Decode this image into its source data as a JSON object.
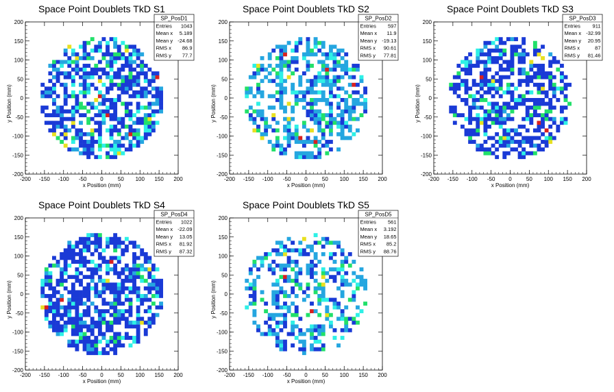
{
  "chart_data": [
    {
      "type": "heatmap",
      "title": "Space Point Doublets TkD S1",
      "xlabel": "x Position (mm)",
      "ylabel": "y Position (mm)",
      "xlim": [
        -200,
        200
      ],
      "ylim": [
        -200,
        200
      ],
      "xticks": [
        "-200",
        "-150",
        "-100",
        "-50",
        "0",
        "50",
        "100",
        "150",
        "200"
      ],
      "yticks": [
        "-200",
        "-150",
        "-100",
        "-50",
        "0",
        "50",
        "100",
        "150",
        "200"
      ],
      "stats": {
        "name": "SP_PosD1",
        "rows": [
          {
            "label": "Entries",
            "value": "1043"
          },
          {
            "label": "Mean x",
            "value": "5.189"
          },
          {
            "label": "Mean y",
            "value": "-24.68"
          },
          {
            "label": "RMS x",
            "value": "86.9"
          },
          {
            "label": "RMS y",
            "value": "77.7"
          }
        ]
      },
      "occupied_radius": 160,
      "bin_width": 10
    },
    {
      "type": "heatmap",
      "title": "Space Point Doublets TkD S2",
      "xlabel": "x Position (mm)",
      "ylabel": "y Position (mm)",
      "xlim": [
        -200,
        200
      ],
      "ylim": [
        -200,
        200
      ],
      "xticks": [
        "-200",
        "-150",
        "-100",
        "-50",
        "0",
        "50",
        "100",
        "150",
        "200"
      ],
      "yticks": [
        "-200",
        "-150",
        "-100",
        "-50",
        "0",
        "50",
        "100",
        "150",
        "200"
      ],
      "stats": {
        "name": "SP_PosD2",
        "rows": [
          {
            "label": "Entries",
            "value": "597"
          },
          {
            "label": "Mean x",
            "value": "11.9"
          },
          {
            "label": "Mean y",
            "value": "-19.13"
          },
          {
            "label": "RMS x",
            "value": "90.61"
          },
          {
            "label": "RMS y",
            "value": "77.81"
          }
        ]
      },
      "occupied_radius": 160,
      "bin_width": 10
    },
    {
      "type": "heatmap",
      "title": "Space Point Doublets TkD S3",
      "xlabel": "x Position (mm)",
      "ylabel": "y Position (mm)",
      "xlim": [
        -200,
        200
      ],
      "ylim": [
        -200,
        200
      ],
      "xticks": [
        "-200",
        "-150",
        "-100",
        "-50",
        "0",
        "50",
        "100",
        "150",
        "200"
      ],
      "yticks": [
        "-200",
        "-150",
        "-100",
        "-50",
        "0",
        "50",
        "100",
        "150",
        "200"
      ],
      "stats": {
        "name": "SP_PosD3",
        "rows": [
          {
            "label": "Entries",
            "value": "911"
          },
          {
            "label": "Mean x",
            "value": "-32.99"
          },
          {
            "label": "Mean y",
            "value": "20.95"
          },
          {
            "label": "RMS x",
            "value": "87"
          },
          {
            "label": "RMS y",
            "value": "81.46"
          }
        ]
      },
      "occupied_radius": 160,
      "bin_width": 10
    },
    {
      "type": "heatmap",
      "title": "Space Point Doublets TkD S4",
      "xlabel": "x Position (mm)",
      "ylabel": "y Position (mm)",
      "xlim": [
        -200,
        200
      ],
      "ylim": [
        -200,
        200
      ],
      "xticks": [
        "-200",
        "-150",
        "-100",
        "-50",
        "0",
        "50",
        "100",
        "150",
        "200"
      ],
      "yticks": [
        "-200",
        "-150",
        "-100",
        "-50",
        "0",
        "50",
        "100",
        "150",
        "200"
      ],
      "stats": {
        "name": "SP_PosD4",
        "rows": [
          {
            "label": "Entries",
            "value": "1022"
          },
          {
            "label": "Mean x",
            "value": "-22.09"
          },
          {
            "label": "Mean y",
            "value": "13.05"
          },
          {
            "label": "RMS x",
            "value": "81.92"
          },
          {
            "label": "RMS y",
            "value": "87.32"
          }
        ]
      },
      "occupied_radius": 160,
      "bin_width": 10
    },
    {
      "type": "heatmap",
      "title": "Space Point Doublets TkD S5",
      "xlabel": "x Position (mm)",
      "ylabel": "y Position (mm)",
      "xlim": [
        -200,
        200
      ],
      "ylim": [
        -200,
        200
      ],
      "xticks": [
        "-200",
        "-150",
        "-100",
        "-50",
        "0",
        "50",
        "100",
        "150",
        "200"
      ],
      "yticks": [
        "-200",
        "-150",
        "-100",
        "-50",
        "0",
        "50",
        "100",
        "150",
        "200"
      ],
      "stats": {
        "name": "SP_PosD5",
        "rows": [
          {
            "label": "Entries",
            "value": "561"
          },
          {
            "label": "Mean x",
            "value": "3.192"
          },
          {
            "label": "Mean y",
            "value": "18.65"
          },
          {
            "label": "RMS x",
            "value": "85.2"
          },
          {
            "label": "RMS y",
            "value": "88.76"
          }
        ]
      },
      "occupied_radius": 160,
      "bin_width": 10
    }
  ],
  "palette": {
    "low": "#1a3ad6",
    "mid_low": "#25a6e0",
    "mid": "#2ef0e6",
    "mid_high": "#22e06a",
    "high": "#e8e020",
    "peak": "#d82020",
    "frame": "#000000",
    "background": "#ffffff"
  }
}
